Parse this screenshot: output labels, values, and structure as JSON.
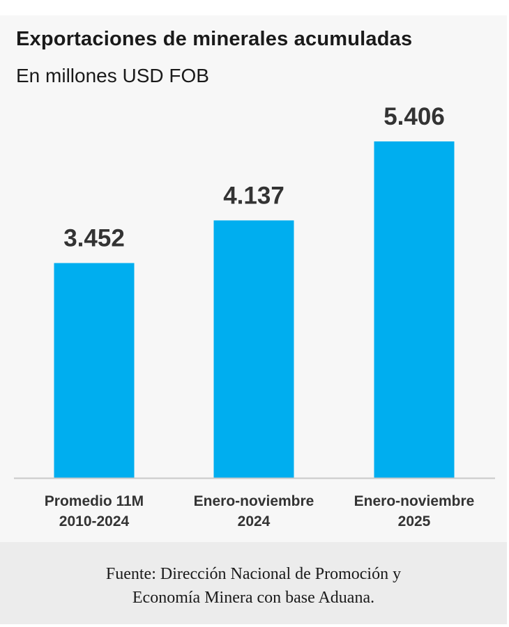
{
  "title": "Exportaciones de minerales acumuladas",
  "subtitle": "En millones USD FOB",
  "source": {
    "line1": "Fuente: Dirección Nacional de Promoción y",
    "line2": "Economía Minera con base Aduana."
  },
  "colors": {
    "bar": "#00aeef",
    "baseline": "#c8c8c8"
  },
  "chart_data": {
    "type": "bar",
    "title": "Exportaciones de minerales acumuladas",
    "subtitle": "En millones USD FOB",
    "categories": [
      [
        "Promedio 11M",
        "2010-2024"
      ],
      [
        "Enero-noviembre",
        "2024"
      ],
      [
        "Enero-noviembre",
        "2025"
      ]
    ],
    "values": [
      3452,
      4137,
      5406
    ],
    "value_labels": [
      "3.452",
      "4.137",
      "5.406"
    ],
    "ylim": [
      0,
      5406
    ],
    "grid": false,
    "legend": "none"
  }
}
